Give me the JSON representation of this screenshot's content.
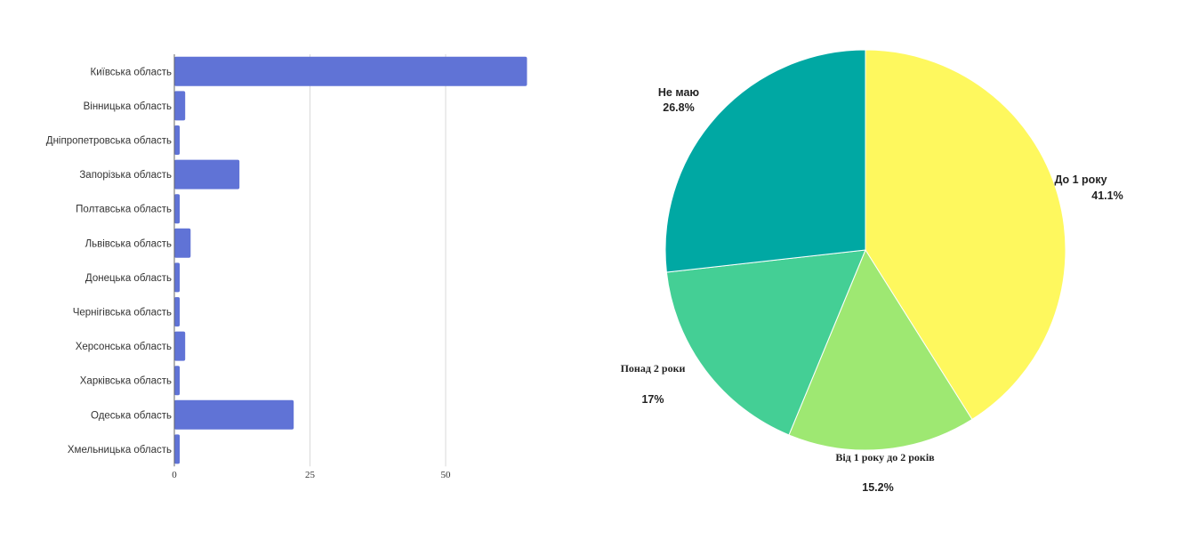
{
  "chart_data": [
    {
      "type": "bar",
      "orientation": "horizontal",
      "categories": [
        "Київська область",
        "Вінницька область",
        "Дніпропетровська область",
        "Запорізька область",
        "Полтавська область",
        "Львівська область",
        "Донецька область",
        "Чернігівська область",
        "Херсонська область",
        "Харківська область",
        "Одеська область",
        "Хмельницька область"
      ],
      "values": [
        65,
        2,
        1,
        12,
        1,
        3,
        1,
        1,
        2,
        1,
        22,
        1
      ],
      "xlim": [
        0,
        68
      ],
      "xticks": [
        0,
        25,
        50
      ],
      "grid": true,
      "colors": {
        "bar": "#6073d6",
        "grid": "#d9d9d9",
        "axis": "#666666"
      }
    },
    {
      "type": "pie",
      "slices": [
        {
          "label": "До 1 року",
          "percent_label": "41.1%",
          "value": 41.1,
          "color": "#fef85e",
          "font": "sans"
        },
        {
          "label": "Від 1 року до 2 років",
          "percent_label": "15.2%",
          "value": 15.2,
          "color": "#9ee872",
          "font": "serif"
        },
        {
          "label": "Понад 2 роки",
          "percent_label": "17%",
          "value": 17.0,
          "color": "#44cf95",
          "font": "serif"
        },
        {
          "label": "Не маю",
          "percent_label": "26.8%",
          "value": 26.8,
          "color": "#00a8a3",
          "font": "sans"
        }
      ],
      "start_angle": "12 o'clock",
      "direction": "clockwise"
    }
  ]
}
